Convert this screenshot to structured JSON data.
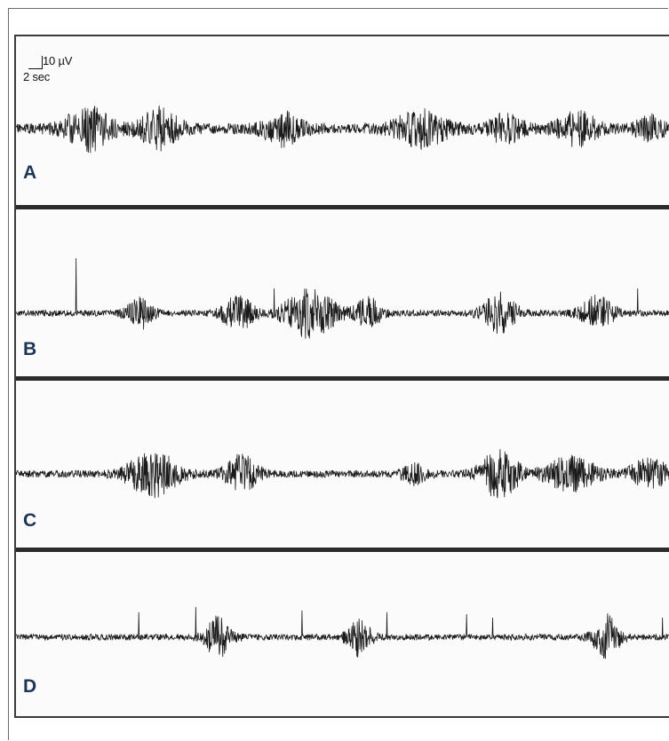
{
  "scale_bar": {
    "voltage": "10 µV",
    "time": "2 sec"
  },
  "panels": [
    {
      "label": "A",
      "seed": 11,
      "noise": 6,
      "bursts": [
        {
          "c": 0.11,
          "w": 0.035,
          "a": 22
        },
        {
          "c": 0.22,
          "w": 0.03,
          "a": 20
        },
        {
          "c": 0.41,
          "w": 0.03,
          "a": 16
        },
        {
          "c": 0.62,
          "w": 0.04,
          "a": 18
        },
        {
          "c": 0.75,
          "w": 0.025,
          "a": 14
        },
        {
          "c": 0.86,
          "w": 0.03,
          "a": 16
        },
        {
          "c": 0.97,
          "w": 0.02,
          "a": 12
        }
      ],
      "spikes": []
    },
    {
      "label": "B",
      "seed": 23,
      "noise": 3.5,
      "bursts": [
        {
          "c": 0.19,
          "w": 0.02,
          "a": 16
        },
        {
          "c": 0.34,
          "w": 0.025,
          "a": 18
        },
        {
          "c": 0.45,
          "w": 0.04,
          "a": 26
        },
        {
          "c": 0.54,
          "w": 0.02,
          "a": 16
        },
        {
          "c": 0.74,
          "w": 0.025,
          "a": 24
        },
        {
          "c": 0.89,
          "w": 0.025,
          "a": 18
        }
      ],
      "spikes": [
        {
          "p": 0.092,
          "a": -62
        },
        {
          "p": 0.395,
          "a": -28
        },
        {
          "p": 0.952,
          "a": -28
        }
      ]
    },
    {
      "label": "C",
      "seed": 37,
      "noise": 4,
      "bursts": [
        {
          "c": 0.21,
          "w": 0.04,
          "a": 24
        },
        {
          "c": 0.345,
          "w": 0.025,
          "a": 20
        },
        {
          "c": 0.61,
          "w": 0.02,
          "a": 10
        },
        {
          "c": 0.74,
          "w": 0.03,
          "a": 26
        },
        {
          "c": 0.85,
          "w": 0.04,
          "a": 18
        },
        {
          "c": 0.97,
          "w": 0.03,
          "a": 16
        }
      ],
      "spikes": []
    },
    {
      "label": "D",
      "seed": 53,
      "noise": 3.5,
      "bursts": [
        {
          "c": 0.31,
          "w": 0.02,
          "a": 22
        },
        {
          "c": 0.525,
          "w": 0.018,
          "a": 20
        },
        {
          "c": 0.905,
          "w": 0.02,
          "a": 24
        }
      ],
      "spikes": [
        {
          "p": 0.188,
          "a": -28
        },
        {
          "p": 0.275,
          "a": -34
        },
        {
          "p": 0.438,
          "a": -30
        },
        {
          "p": 0.568,
          "a": -28
        },
        {
          "p": 0.69,
          "a": -26
        },
        {
          "p": 0.73,
          "a": -22
        },
        {
          "p": 0.99,
          "a": -22
        }
      ]
    }
  ]
}
